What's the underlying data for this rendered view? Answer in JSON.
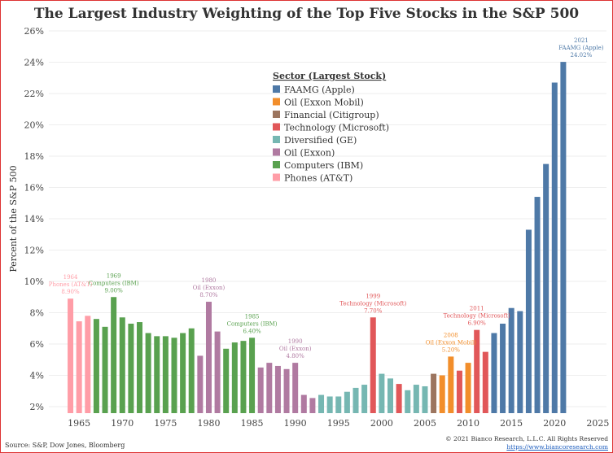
{
  "chart_data": {
    "type": "bar",
    "title": "The Largest Industry Weighting of the Top Five Stocks in the S&P 500",
    "xlabel": "",
    "ylabel": "Percent of the S&P 500",
    "ylim": [
      1.5,
      26.5
    ],
    "xlim": [
      1961.5,
      2026
    ],
    "yticks": [
      "2%",
      "4%",
      "6%",
      "8%",
      "10%",
      "12%",
      "14%",
      "16%",
      "18%",
      "20%",
      "22%",
      "24%",
      "26%"
    ],
    "xticks": [
      1965,
      1970,
      1975,
      1980,
      1985,
      1990,
      1995,
      2000,
      2005,
      2010,
      2015,
      2020,
      2025
    ],
    "grid": true,
    "legend": {
      "title": "Sector (Largest Stock)",
      "placement": "top-center",
      "entries": [
        {
          "key": "faamg",
          "label": "FAAMG (Apple)",
          "color": "#4e79a7"
        },
        {
          "key": "oilxom",
          "label": "Oil (Exxon Mobil)",
          "color": "#f28e2b"
        },
        {
          "key": "fin",
          "label": "Financial (Citigroup)",
          "color": "#9c755f"
        },
        {
          "key": "tech",
          "label": "Technology (Microsoft)",
          "color": "#e15759"
        },
        {
          "key": "ge",
          "label": "Diversified (GE)",
          "color": "#76b7b2"
        },
        {
          "key": "oil",
          "label": "Oil (Exxon)",
          "color": "#b07aa1"
        },
        {
          "key": "ibm",
          "label": "Computers (IBM)",
          "color": "#59a14f"
        },
        {
          "key": "att",
          "label": "Phones (AT&T)",
          "color": "#ff9da7"
        }
      ]
    },
    "bars": [
      {
        "year": 1964,
        "value": 8.9,
        "sector": "att"
      },
      {
        "year": 1965,
        "value": 7.45,
        "sector": "att"
      },
      {
        "year": 1966,
        "value": 7.8,
        "sector": "att"
      },
      {
        "year": 1967,
        "value": 7.6,
        "sector": "ibm"
      },
      {
        "year": 1968,
        "value": 7.1,
        "sector": "ibm"
      },
      {
        "year": 1969,
        "value": 9.0,
        "sector": "ibm"
      },
      {
        "year": 1970,
        "value": 7.7,
        "sector": "ibm"
      },
      {
        "year": 1971,
        "value": 7.3,
        "sector": "ibm"
      },
      {
        "year": 1972,
        "value": 7.4,
        "sector": "ibm"
      },
      {
        "year": 1973,
        "value": 6.7,
        "sector": "ibm"
      },
      {
        "year": 1974,
        "value": 6.5,
        "sector": "ibm"
      },
      {
        "year": 1975,
        "value": 6.5,
        "sector": "ibm"
      },
      {
        "year": 1976,
        "value": 6.4,
        "sector": "ibm"
      },
      {
        "year": 1977,
        "value": 6.7,
        "sector": "ibm"
      },
      {
        "year": 1978,
        "value": 7.0,
        "sector": "ibm"
      },
      {
        "year": 1979,
        "value": 5.25,
        "sector": "oil"
      },
      {
        "year": 1980,
        "value": 8.7,
        "sector": "oil"
      },
      {
        "year": 1981,
        "value": 6.8,
        "sector": "oil"
      },
      {
        "year": 1982,
        "value": 5.7,
        "sector": "ibm"
      },
      {
        "year": 1983,
        "value": 6.1,
        "sector": "ibm"
      },
      {
        "year": 1984,
        "value": 6.2,
        "sector": "ibm"
      },
      {
        "year": 1985,
        "value": 6.4,
        "sector": "ibm"
      },
      {
        "year": 1986,
        "value": 4.5,
        "sector": "oil"
      },
      {
        "year": 1987,
        "value": 4.8,
        "sector": "oil"
      },
      {
        "year": 1988,
        "value": 4.6,
        "sector": "oil"
      },
      {
        "year": 1989,
        "value": 4.4,
        "sector": "oil"
      },
      {
        "year": 1990,
        "value": 4.8,
        "sector": "oil"
      },
      {
        "year": 1991,
        "value": 2.75,
        "sector": "oil"
      },
      {
        "year": 1992,
        "value": 2.55,
        "sector": "oil"
      },
      {
        "year": 1993,
        "value": 2.75,
        "sector": "ge"
      },
      {
        "year": 1994,
        "value": 2.65,
        "sector": "ge"
      },
      {
        "year": 1995,
        "value": 2.65,
        "sector": "ge"
      },
      {
        "year": 1996,
        "value": 2.95,
        "sector": "ge"
      },
      {
        "year": 1997,
        "value": 3.2,
        "sector": "ge"
      },
      {
        "year": 1998,
        "value": 3.4,
        "sector": "ge"
      },
      {
        "year": 1999,
        "value": 7.7,
        "sector": "tech"
      },
      {
        "year": 2000,
        "value": 4.1,
        "sector": "ge"
      },
      {
        "year": 2001,
        "value": 3.8,
        "sector": "ge"
      },
      {
        "year": 2002,
        "value": 3.45,
        "sector": "tech"
      },
      {
        "year": 2003,
        "value": 3.05,
        "sector": "ge"
      },
      {
        "year": 2004,
        "value": 3.4,
        "sector": "ge"
      },
      {
        "year": 2005,
        "value": 3.3,
        "sector": "ge"
      },
      {
        "year": 2006,
        "value": 4.1,
        "sector": "fin"
      },
      {
        "year": 2007,
        "value": 4.0,
        "sector": "oilxom"
      },
      {
        "year": 2008,
        "value": 5.2,
        "sector": "oilxom"
      },
      {
        "year": 2009,
        "value": 4.3,
        "sector": "tech"
      },
      {
        "year": 2010,
        "value": 4.8,
        "sector": "oilxom"
      },
      {
        "year": 2011,
        "value": 6.9,
        "sector": "tech"
      },
      {
        "year": 2012,
        "value": 5.5,
        "sector": "tech"
      },
      {
        "year": 2013,
        "value": 6.7,
        "sector": "faamg"
      },
      {
        "year": 2014,
        "value": 7.3,
        "sector": "faamg"
      },
      {
        "year": 2015,
        "value": 8.3,
        "sector": "faamg"
      },
      {
        "year": 2016,
        "value": 8.1,
        "sector": "faamg"
      },
      {
        "year": 2017,
        "value": 13.3,
        "sector": "faamg"
      },
      {
        "year": 2018,
        "value": 15.4,
        "sector": "faamg"
      },
      {
        "year": 2019,
        "value": 17.5,
        "sector": "faamg"
      },
      {
        "year": 2020,
        "value": 22.7,
        "sector": "faamg"
      },
      {
        "year": 2021,
        "value": 24.02,
        "sector": "faamg"
      }
    ],
    "annotations": [
      {
        "year": 1964,
        "lines": [
          "1964",
          "Phones (AT&T)",
          "8.90%"
        ],
        "sector": "att"
      },
      {
        "year": 1969,
        "lines": [
          "1969",
          "Computers (IBM)",
          "9.00%"
        ],
        "sector": "ibm"
      },
      {
        "year": 1980,
        "lines": [
          "1980",
          "Oil (Exxon)",
          "8.70%"
        ],
        "sector": "oil"
      },
      {
        "year": 1985,
        "lines": [
          "1985",
          "Computers (IBM)",
          "6.40%"
        ],
        "sector": "ibm"
      },
      {
        "year": 1990,
        "lines": [
          "1990",
          "Oil (Exxon)",
          "4.80%"
        ],
        "sector": "oil"
      },
      {
        "year": 1999,
        "lines": [
          "1999",
          "Technology (Microsoft)",
          "7.70%"
        ],
        "sector": "tech"
      },
      {
        "year": 2008,
        "lines": [
          "2008",
          "Oil (Exxon Mobil)",
          "5.20%"
        ],
        "sector": "oilxom"
      },
      {
        "year": 2011,
        "lines": [
          "2011",
          "Technology (Microsoft)",
          "6.90%"
        ],
        "sector": "tech"
      },
      {
        "year": 2021,
        "lines": [
          "2021",
          "FAAMG (Apple)",
          "24.02%"
        ],
        "sector": "faamg"
      }
    ]
  },
  "footer": {
    "source": "Source: S&P, Dow Jones, Bloomberg",
    "copyright": "© 2021 Bianco Research, L.L.C. All Rights Reserved",
    "url": "https://www.biancoresearch.com"
  }
}
